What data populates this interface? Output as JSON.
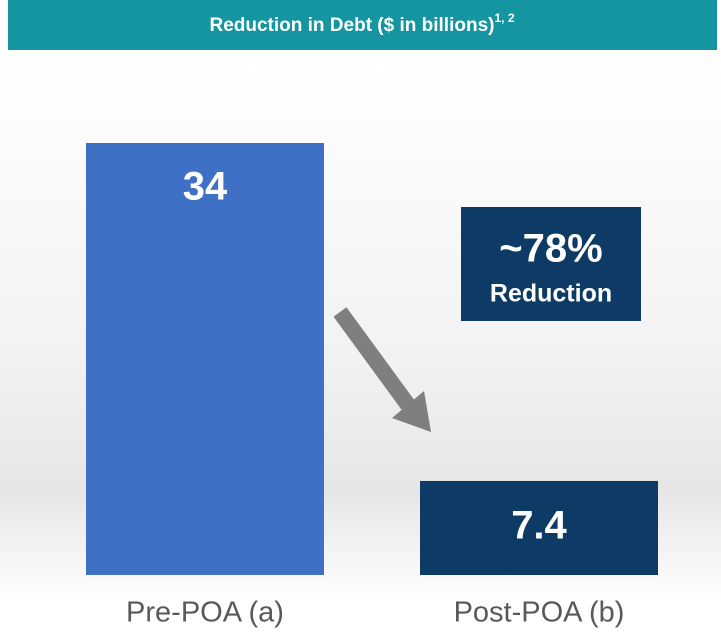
{
  "chart_data": {
    "type": "bar",
    "title": "Reduction in Debt ($ in billions)",
    "title_superscript": "1, 2",
    "categories": [
      "Pre-POA (a)",
      "Post-POA (b)"
    ],
    "values": [
      34,
      7.4
    ],
    "colors": [
      "#3e70c5",
      "#0e3b66"
    ],
    "ylim": [
      0,
      34
    ],
    "annotations": [
      "~78%",
      "Reduction"
    ]
  }
}
